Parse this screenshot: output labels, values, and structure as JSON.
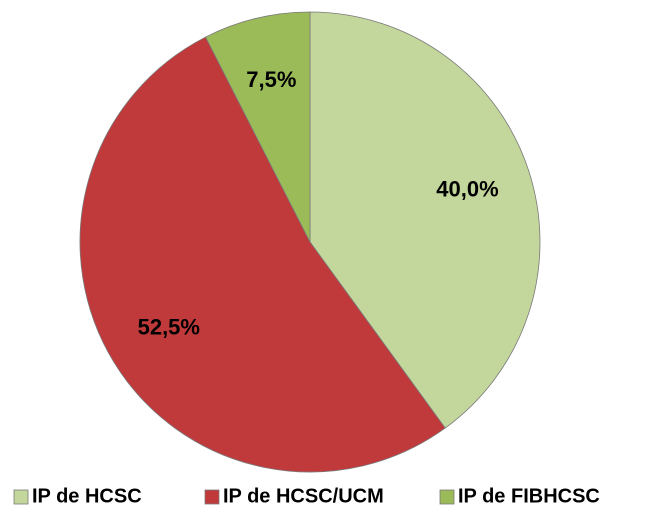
{
  "chart_data": {
    "type": "pie",
    "categories": [
      "IP de HCSC",
      "IP de HCSC/UCM",
      "IP de FIBHCSC"
    ],
    "values": [
      40.0,
      52.5,
      7.5
    ],
    "value_labels": [
      "40,0%",
      "52,5%",
      "7,5%"
    ],
    "colors": [
      "#c3d69b",
      "#c0393b",
      "#9bbb59"
    ],
    "legend": "bottom"
  }
}
